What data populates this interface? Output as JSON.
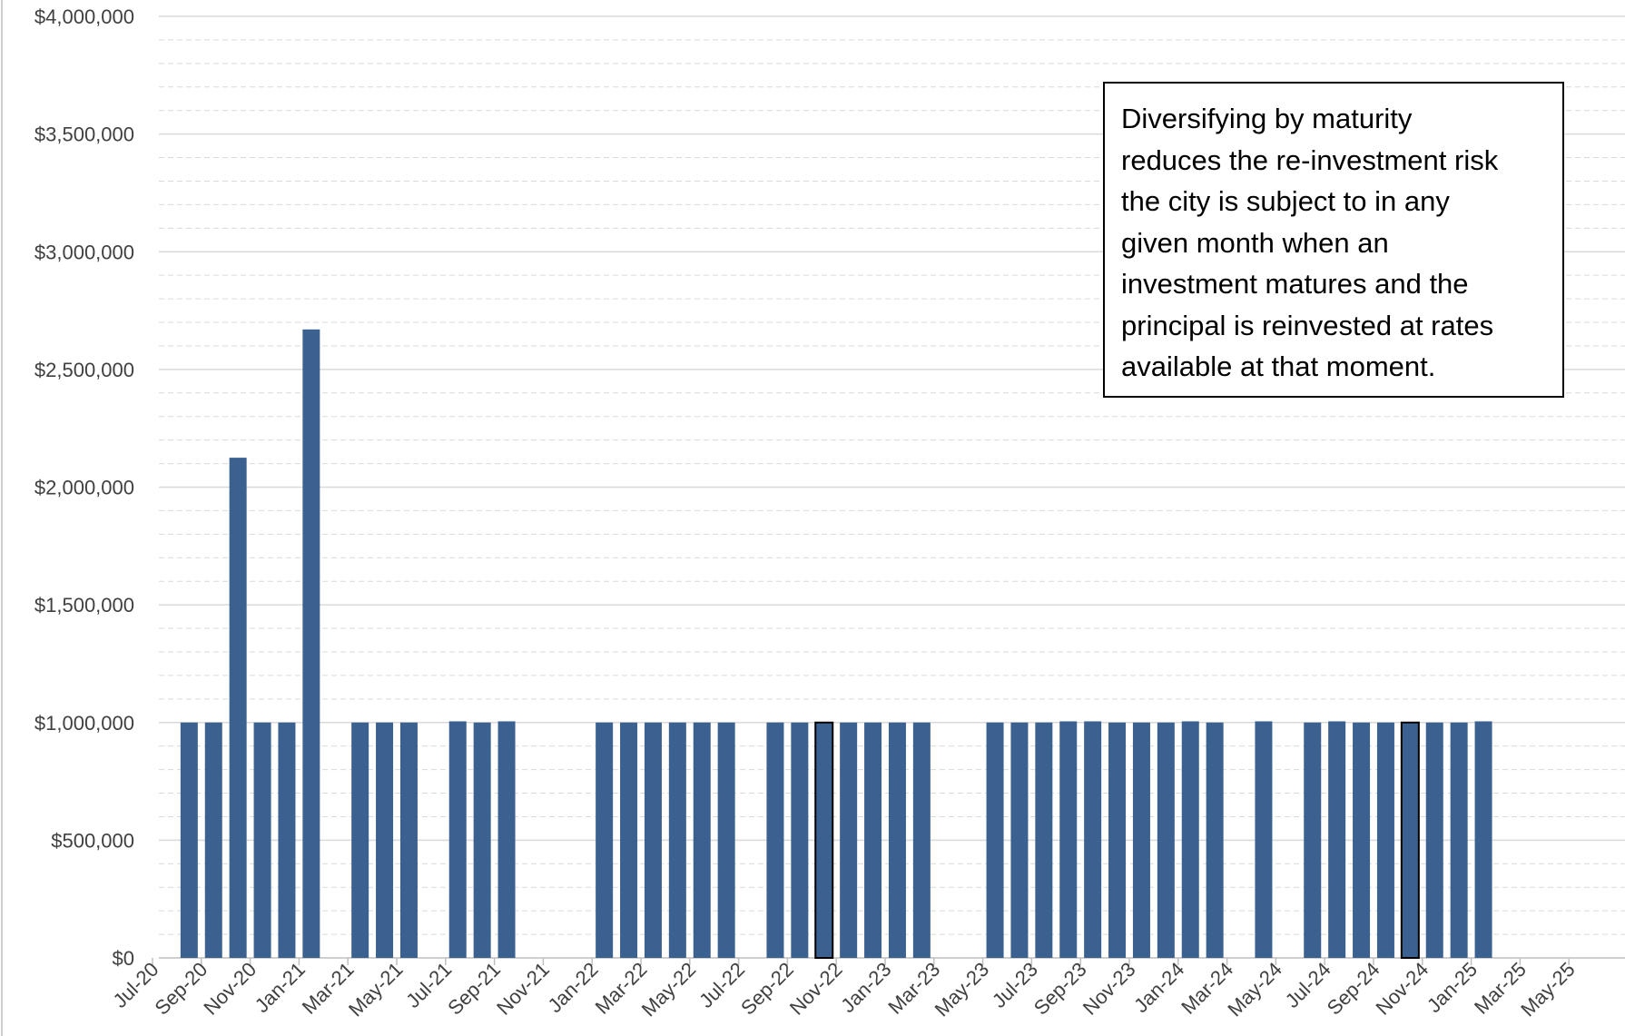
{
  "chart_data": {
    "type": "bar",
    "title": "",
    "xlabel": "",
    "ylabel": "",
    "ylim": [
      0,
      4000000
    ],
    "y_ticks": [
      "$0",
      "$500,000",
      "$1,000,000",
      "$1,500,000",
      "$2,000,000",
      "$2,500,000",
      "$3,000,000",
      "$3,500,000",
      "$4,000,000"
    ],
    "x_tick_labels": [
      "Jul-20",
      "Sep-20",
      "Nov-20",
      "Jan-21",
      "Mar-21",
      "May-21",
      "Jul-21",
      "Sep-21",
      "Nov-21",
      "Jan-22",
      "Mar-22",
      "May-22",
      "Jul-22",
      "Sep-22",
      "Nov-22",
      "Jan-23",
      "Mar-23",
      "May-23",
      "Jul-23",
      "Sep-23",
      "Nov-23",
      "Jan-24",
      "Mar-24",
      "May-24",
      "Jul-24",
      "Sep-24",
      "Nov-24",
      "Jan-25",
      "Mar-25",
      "May-25"
    ],
    "categories": [
      "Jul-20",
      "Aug-20",
      "Sep-20",
      "Oct-20",
      "Nov-20",
      "Dec-20",
      "Jan-21",
      "Feb-21",
      "Mar-21",
      "Apr-21",
      "May-21",
      "Jun-21",
      "Jul-21",
      "Aug-21",
      "Sep-21",
      "Oct-21",
      "Nov-21",
      "Dec-21",
      "Jan-22",
      "Feb-22",
      "Mar-22",
      "Apr-22",
      "May-22",
      "Jun-22",
      "Jul-22",
      "Aug-22",
      "Sep-22",
      "Oct-22",
      "Nov-22",
      "Dec-22",
      "Jan-23",
      "Feb-23",
      "Mar-23",
      "Apr-23",
      "May-23",
      "Jun-23",
      "Jul-23",
      "Aug-23",
      "Sep-23",
      "Oct-23",
      "Nov-23",
      "Dec-23",
      "Jan-24",
      "Feb-24",
      "Mar-24",
      "Apr-24",
      "May-24",
      "Jun-24",
      "Jul-24",
      "Aug-24",
      "Sep-24",
      "Oct-24",
      "Nov-24",
      "Dec-24",
      "Jan-25",
      "Feb-25",
      "Mar-25",
      "Apr-25",
      "May-25",
      "Jun-25"
    ],
    "values": [
      0,
      1000000,
      1000000,
      2125000,
      1000000,
      1000000,
      2670000,
      0,
      1000000,
      1000000,
      1000000,
      0,
      1005000,
      1000000,
      1005000,
      0,
      0,
      0,
      1000000,
      1000000,
      1000000,
      1000000,
      1000000,
      1000000,
      0,
      1000000,
      1000000,
      1000000,
      1000000,
      1000000,
      1000000,
      1000000,
      0,
      0,
      1000000,
      1000000,
      1000000,
      1005000,
      1005000,
      1000000,
      1000000,
      1000000,
      1005000,
      1000000,
      0,
      1005000,
      0,
      1000000,
      1005000,
      1000000,
      1000000,
      1000000,
      1000000,
      1000000,
      1005000,
      0,
      0,
      0,
      0,
      0
    ],
    "highlighted_bars": [
      "Oct-22",
      "Oct-24"
    ],
    "grid": true,
    "colors": {
      "bar": "#3A6190",
      "highlight_border": "#000000",
      "grid": "#d9d9d9",
      "axis": "#bfbfbf",
      "text": "#404040"
    }
  },
  "annotation": {
    "lines": [
      "Diversifying by maturity",
      "reduces the re-investment risk",
      "the city is subject to in any",
      "given month when an",
      "investment matures and the",
      "principal is reinvested at rates",
      "available at that moment."
    ]
  }
}
